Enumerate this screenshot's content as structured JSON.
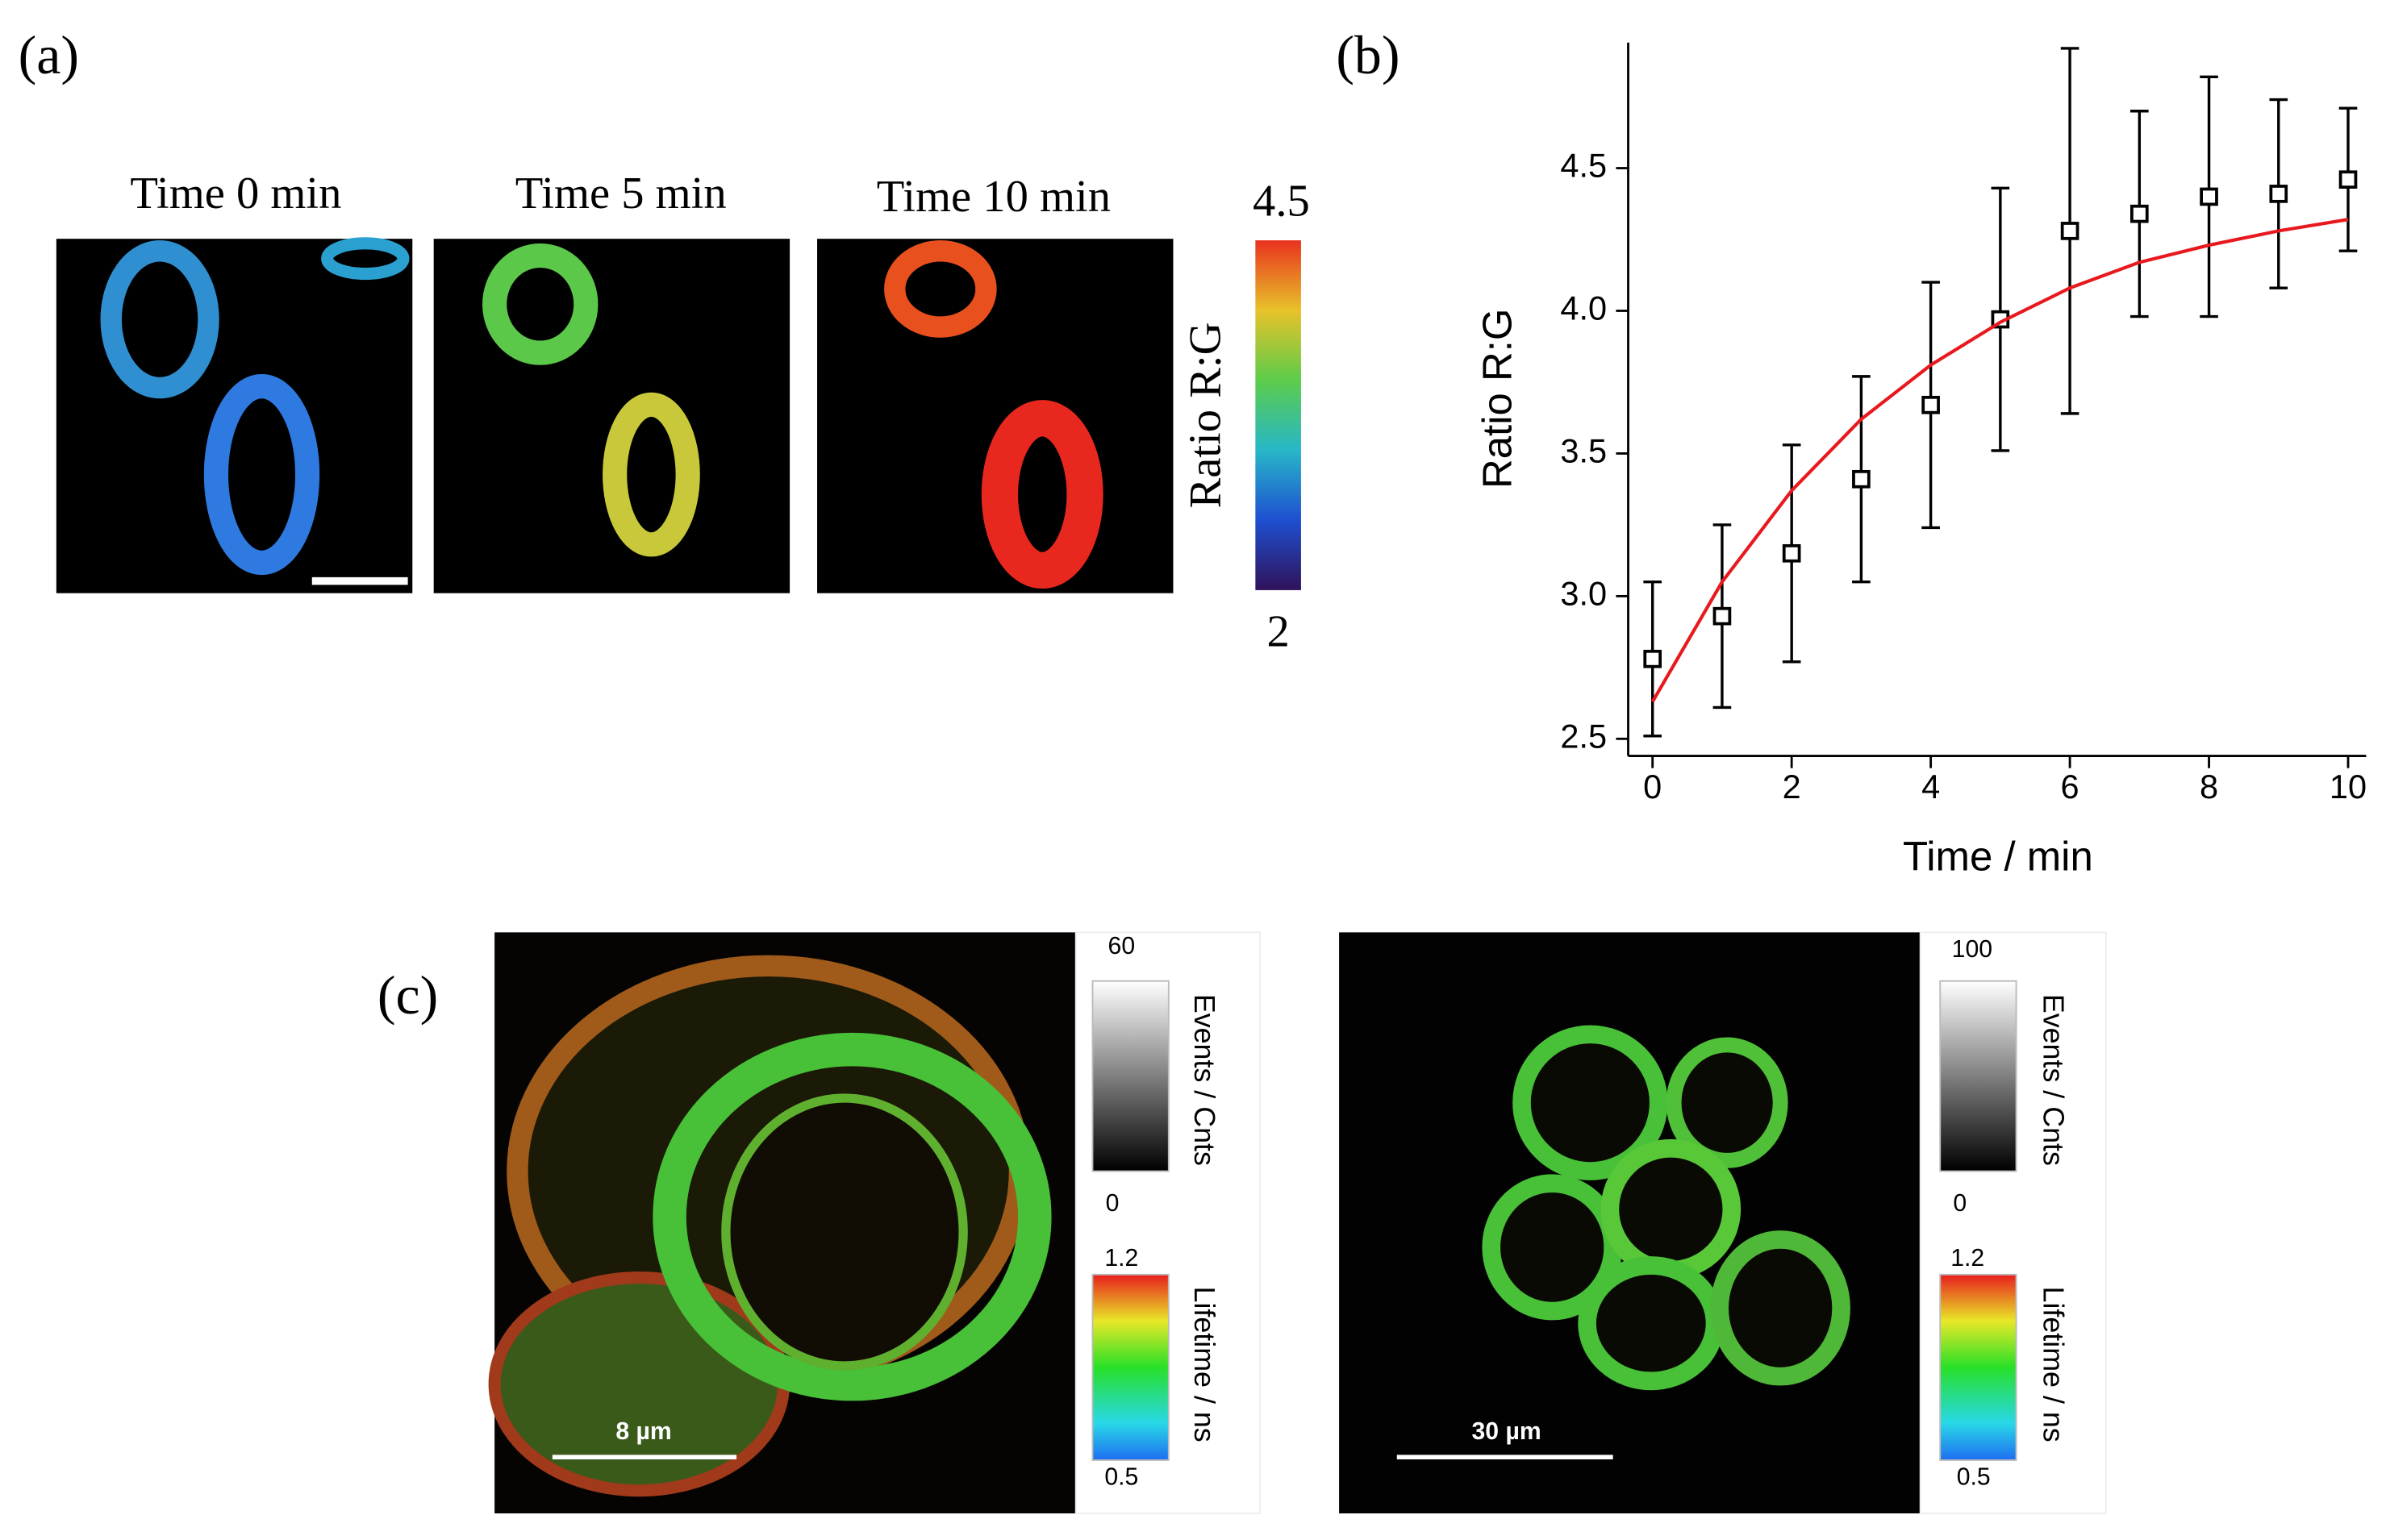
{
  "panel_labels": [
    "(a)",
    "(b)",
    "(c)"
  ],
  "panel_a": {
    "image_titles": [
      "Time 0 min",
      "Time 5 min",
      "Time 10 min"
    ],
    "colorbar_label": "Ratio R:G",
    "colorbar_max": 4.5,
    "colorbar_min": 2
  },
  "chart_data": {
    "type": "scatter",
    "x": [
      0,
      1,
      2,
      3,
      4,
      5,
      6,
      7,
      8,
      9,
      10
    ],
    "series": [
      {
        "color": "#000000",
        "values": [
          2.78,
          2.93,
          3.15,
          3.41,
          3.67,
          3.97,
          4.28,
          4.34,
          4.4,
          4.41,
          4.46
        ],
        "errors": [
          0.27,
          0.32,
          0.38,
          0.36,
          0.43,
          0.46,
          0.64,
          0.36,
          0.42,
          0.33,
          0.25
        ]
      },
      {
        "type": "line",
        "color": "#e8191e",
        "values": [
          2.63,
          3.05,
          3.37,
          3.62,
          3.81,
          3.96,
          4.08,
          4.17,
          4.23,
          4.28,
          4.32
        ]
      }
    ],
    "xlabel": "Time / min",
    "ylabel": "Ratio R:G",
    "xlim": [
      -0.35,
      10.26
    ],
    "ylim": [
      2.44,
      4.94
    ],
    "xticks": [
      0,
      2,
      4,
      6,
      8,
      10
    ],
    "yticks": [
      2.5,
      {
        "value": 3,
        "label": "3.0"
      },
      3.5,
      {
        "value": 4,
        "label": "4.0"
      },
      4.5
    ]
  },
  "panel_c": {
    "images": [
      {
        "scale_bar": "8 µm",
        "events_max": 60,
        "events_min": 0,
        "events_label": "Events / Cnts",
        "lifetime_max": 1.2,
        "lifetime_min": 0.5,
        "lifetime_label": "Lifetime / ns"
      },
      {
        "scale_bar": "30 µm",
        "events_max": 100,
        "events_min": 0,
        "events_label": "Events / Cnts",
        "lifetime_max": 1.2,
        "lifetime_min": 0.5,
        "lifetime_label": "Lifetime / ns"
      }
    ]
  }
}
